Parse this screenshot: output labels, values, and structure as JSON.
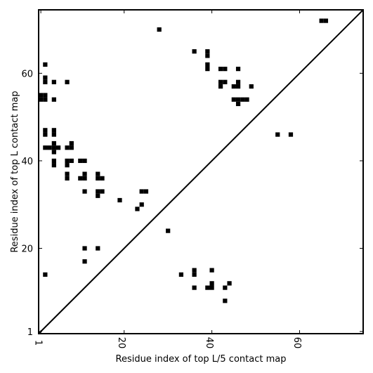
{
  "chart_data": {
    "type": "heatmap",
    "xlabel": "Residue index of top L/5 contact map",
    "ylabel": "Residue index of top L contact map",
    "xlim": [
      0.5,
      74.5
    ],
    "ylim": [
      0.5,
      74.5
    ],
    "xticks": [
      {
        "value": 1,
        "label": "1"
      },
      {
        "value": 20,
        "label": "20"
      },
      {
        "value": 40,
        "label": "40"
      },
      {
        "value": 60,
        "label": "60"
      }
    ],
    "yticks": [
      {
        "value": 1,
        "label": "1"
      },
      {
        "value": 20,
        "label": "20"
      },
      {
        "value": 40,
        "label": "40"
      },
      {
        "value": 60,
        "label": "60"
      }
    ],
    "diagonal": true,
    "cell_color": "#000000",
    "upper_contacts": [
      [
        28,
        70
      ],
      [
        65,
        72
      ],
      [
        66,
        72
      ],
      [
        36,
        65
      ],
      [
        39,
        64
      ],
      [
        39,
        65
      ],
      [
        39,
        61
      ],
      [
        39,
        62
      ],
      [
        42,
        61
      ],
      [
        43,
        61
      ],
      [
        46,
        61
      ],
      [
        2,
        62
      ],
      [
        2,
        59
      ],
      [
        2,
        58
      ],
      [
        4,
        58
      ],
      [
        7,
        58
      ],
      [
        42,
        58
      ],
      [
        43,
        58
      ],
      [
        46,
        58
      ],
      [
        42,
        57
      ],
      [
        45,
        57
      ],
      [
        46,
        57
      ],
      [
        49,
        57
      ],
      [
        1,
        55
      ],
      [
        2,
        55
      ],
      [
        1,
        54
      ],
      [
        2,
        54
      ],
      [
        4,
        54
      ],
      [
        45,
        54
      ],
      [
        46,
        54
      ],
      [
        47,
        54
      ],
      [
        48,
        54
      ],
      [
        46,
        53
      ],
      [
        2,
        47
      ],
      [
        2,
        46
      ],
      [
        4,
        47
      ],
      [
        4,
        46
      ],
      [
        55,
        46
      ],
      [
        58,
        46
      ],
      [
        2,
        43
      ],
      [
        3,
        43
      ],
      [
        4,
        43
      ],
      [
        5,
        43
      ],
      [
        4,
        44
      ],
      [
        4,
        42
      ],
      [
        7,
        43
      ],
      [
        8,
        43
      ],
      [
        8,
        44
      ],
      [
        4,
        40
      ],
      [
        4,
        39
      ],
      [
        7,
        40
      ],
      [
        7,
        39
      ],
      [
        8,
        40
      ],
      [
        10,
        40
      ],
      [
        11,
        40
      ],
      [
        7,
        37
      ],
      [
        7,
        36
      ],
      [
        10,
        36
      ],
      [
        11,
        37
      ],
      [
        11,
        36
      ],
      [
        14,
        37
      ],
      [
        14,
        36
      ],
      [
        15,
        36
      ],
      [
        11,
        33
      ],
      [
        14,
        33
      ],
      [
        14,
        32
      ],
      [
        15,
        33
      ],
      [
        19,
        31
      ],
      [
        24,
        33
      ],
      [
        25,
        33
      ],
      [
        23,
        29
      ],
      [
        24,
        30
      ],
      [
        30,
        24
      ],
      [
        11,
        20
      ],
      [
        14,
        20
      ],
      [
        11,
        17
      ]
    ],
    "lower_contacts": [
      [
        2,
        14
      ],
      [
        33,
        14
      ],
      [
        36,
        15
      ],
      [
        36,
        14
      ],
      [
        40,
        15
      ],
      [
        40,
        12
      ],
      [
        40,
        11
      ],
      [
        39,
        11
      ],
      [
        36,
        11
      ],
      [
        43,
        11
      ],
      [
        44,
        12
      ],
      [
        43,
        8
      ]
    ]
  }
}
